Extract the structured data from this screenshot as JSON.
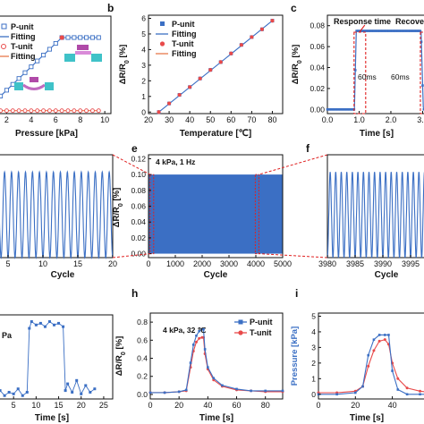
{
  "figure": {
    "panel_letters": [
      "b",
      "c",
      "e",
      "f",
      "h",
      "i"
    ]
  },
  "chart_data": [
    {
      "panel": "a",
      "type": "scatter",
      "xlabel": "Pressure [kPa]",
      "ylabel": "",
      "xlim": [
        0,
        10.5
      ],
      "ylim": [
        0,
        1.0
      ],
      "xticks": [
        "2",
        "4",
        "6",
        "8",
        "10"
      ],
      "legend_position": "top-left",
      "legend": [
        "P-unit",
        "Fitting",
        "T-unit",
        "Fitting"
      ],
      "series": [
        {
          "name": "P-unit",
          "color": "#3b6fc4",
          "x": [
            0,
            0.5,
            1,
            1.5,
            2,
            2.5,
            3,
            3.5,
            4,
            4.5,
            5,
            5.5,
            6,
            6.5,
            7,
            7.5,
            8,
            8.5,
            9,
            9.5
          ],
          "y": [
            0.0,
            0.06,
            0.12,
            0.18,
            0.24,
            0.3,
            0.36,
            0.42,
            0.48,
            0.54,
            0.6,
            0.66,
            0.72,
            0.78,
            0.78,
            0.78,
            0.78,
            0.78,
            0.78,
            0.78
          ]
        },
        {
          "name": "Fitting",
          "color": "#3b6fc4",
          "x": [
            0,
            6.5
          ],
          "y": [
            0.0,
            0.78
          ]
        },
        {
          "name": "T-unit",
          "color": "#e84a4a",
          "x": [
            0,
            0.5,
            1,
            1.5,
            2,
            2.5,
            3,
            3.5,
            4,
            4.5,
            5,
            5.5,
            6,
            6.5,
            7,
            7.5,
            8,
            8.5,
            9,
            9.5
          ],
          "y": [
            0.03,
            0.03,
            0.03,
            0.03,
            0.03,
            0.03,
            0.03,
            0.03,
            0.03,
            0.03,
            0.03,
            0.03,
            0.03,
            0.03,
            0.03,
            0.03,
            0.03,
            0.03,
            0.03,
            0.03
          ]
        },
        {
          "name": "Fitting",
          "color": "#e87a4a",
          "x": [
            0,
            9.5
          ],
          "y": [
            0.03,
            0.03
          ]
        }
      ]
    },
    {
      "panel": "b",
      "type": "scatter",
      "xlabel": "Temperature [℃]",
      "ylabel": "ΔR/R0 [%]",
      "xlim": [
        20,
        85
      ],
      "ylim": [
        -0.1,
        6.2
      ],
      "xticks": [
        20,
        30,
        40,
        50,
        60,
        70,
        80
      ],
      "yticks": [
        0,
        1,
        2,
        3,
        4,
        5,
        6
      ],
      "legend_position": "top-left",
      "legend": [
        "P-unit",
        "Fitting",
        "T-unit",
        "Fitting"
      ],
      "series": [
        {
          "name": "P-unit",
          "color": "#3b6fc4",
          "x": [
            25,
            30,
            35,
            40,
            45,
            50,
            55,
            60,
            65,
            70,
            75,
            80
          ],
          "y": [
            0.0,
            0.55,
            1.1,
            1.6,
            2.15,
            2.7,
            3.2,
            3.75,
            4.3,
            4.8,
            5.3,
            5.85
          ]
        },
        {
          "name": "Fitting",
          "color": "#3b6fc4",
          "x": [
            25,
            80
          ],
          "y": [
            0.0,
            5.85
          ]
        },
        {
          "name": "T-unit",
          "color": "#e84a4a",
          "x": [
            25,
            30,
            35,
            40,
            45,
            50,
            55,
            60,
            65,
            70,
            75,
            80
          ],
          "y": [
            0.0,
            0.55,
            1.1,
            1.6,
            2.15,
            2.7,
            3.2,
            3.75,
            4.3,
            4.8,
            5.3,
            5.85
          ]
        },
        {
          "name": "Fitting",
          "color": "#e87a4a",
          "x": [
            25,
            80
          ],
          "y": [
            0.0,
            5.85
          ]
        }
      ]
    },
    {
      "panel": "c",
      "type": "line",
      "xlabel": "Time [s]",
      "ylabel": "ΔR/R0 [%]",
      "xlim": [
        0,
        3.1
      ],
      "ylim": [
        -0.004,
        0.09
      ],
      "xticks": [
        0.0,
        1.0,
        2.0,
        3.0
      ],
      "yticks": [
        0.0,
        0.02,
        0.04,
        0.06,
        0.08
      ],
      "annotations": [
        "Response time",
        "Recovery",
        "60ms",
        "60ms"
      ],
      "series": [
        {
          "name": "",
          "color": "#3b6fc4",
          "x": [
            0,
            0.85,
            0.91,
            1.0,
            2.95,
            3.02,
            3.1
          ],
          "y": [
            0.0,
            0.0,
            0.075,
            0.075,
            0.075,
            0.002,
            0.0
          ]
        }
      ]
    },
    {
      "panel": "d",
      "type": "line",
      "xlabel": "Cycle",
      "xlim": [
        0,
        20
      ],
      "ylim": [
        0,
        0.12
      ],
      "xticks": [
        5,
        10,
        15,
        20
      ],
      "series": [
        {
          "name": "",
          "color": "#3b6fc4",
          "cycles": 20,
          "amplitude": 0.1
        }
      ]
    },
    {
      "panel": "e",
      "type": "area",
      "xlabel": "Cycle",
      "ylabel": "ΔR/R0 [%]",
      "xlim": [
        0,
        5000
      ],
      "ylim": [
        -0.005,
        0.125
      ],
      "xticks": [
        0,
        1000,
        2000,
        3000,
        4000,
        5000
      ],
      "yticks": [
        0.0,
        0.02,
        0.04,
        0.06,
        0.08,
        0.1,
        0.12
      ],
      "annotations": [
        "4 kPa, 1 Hz"
      ],
      "series": [
        {
          "name": "",
          "color": "#3b6fc4",
          "min": 0.0,
          "max": 0.1
        }
      ]
    },
    {
      "panel": "f",
      "type": "line",
      "xlabel": "Cycle",
      "xlim": [
        3980,
        4000
      ],
      "ylim": [
        0,
        0.12
      ],
      "xticks": [
        3980,
        3985,
        3990,
        3995
      ],
      "series": [
        {
          "name": "",
          "color": "#3b6fc4",
          "cycles": 20,
          "amplitude": 0.1
        }
      ]
    },
    {
      "panel": "g",
      "type": "scatter",
      "xlabel": "Time [s]",
      "xlim": [
        0,
        27
      ],
      "ylim": [
        0,
        5
      ],
      "xticks": [
        5,
        10,
        15,
        20,
        25
      ],
      "annotations": [
        "Pa"
      ],
      "series": [
        {
          "name": "",
          "color": "#3b6fc4",
          "x": [
            0,
            1,
            2,
            3,
            4,
            5,
            6,
            7,
            8,
            8.5,
            9,
            10,
            11,
            12,
            13,
            14,
            15,
            16,
            16.5,
            17,
            18,
            19,
            20,
            21,
            22,
            23
          ],
          "y": [
            0.6,
            0.3,
            0.5,
            0.2,
            0.4,
            0.3,
            0.6,
            0.2,
            0.4,
            4.2,
            4.6,
            4.4,
            4.5,
            4.3,
            4.6,
            4.4,
            4.5,
            4.3,
            0.5,
            0.9,
            0.4,
            1.1,
            0.3,
            0.8,
            0.4,
            0.6
          ]
        }
      ]
    },
    {
      "panel": "h",
      "type": "line",
      "xlabel": "Time [s]",
      "ylabel": "ΔR/R0 [%]",
      "xlim": [
        0,
        92
      ],
      "ylim": [
        -0.05,
        0.9
      ],
      "xticks": [
        0,
        20,
        40,
        60,
        80
      ],
      "yticks": [
        0.0,
        0.2,
        0.4,
        0.6,
        0.8
      ],
      "annotations": [
        "4 kPa, 32 ℃"
      ],
      "legend_position": "top-right",
      "legend": [
        "P-unit",
        "T-unit"
      ],
      "series": [
        {
          "name": "P-unit",
          "color": "#3b6fc4",
          "x": [
            0,
            10,
            20,
            25,
            28,
            30,
            32,
            34,
            36,
            37,
            38,
            40,
            44,
            50,
            60,
            70,
            80,
            92
          ],
          "y": [
            0.02,
            0.02,
            0.03,
            0.05,
            0.35,
            0.55,
            0.65,
            0.7,
            0.72,
            0.72,
            0.5,
            0.3,
            0.18,
            0.1,
            0.06,
            0.04,
            0.04,
            0.04
          ]
        },
        {
          "name": "T-unit",
          "color": "#e84a4a",
          "x": [
            0,
            10,
            20,
            25,
            28,
            30,
            32,
            34,
            36,
            37,
            38,
            40,
            44,
            50,
            60,
            70,
            80,
            92
          ],
          "y": [
            0.02,
            0.02,
            0.03,
            0.04,
            0.3,
            0.48,
            0.58,
            0.62,
            0.63,
            0.63,
            0.45,
            0.28,
            0.16,
            0.09,
            0.05,
            0.04,
            0.03,
            0.03
          ]
        }
      ]
    },
    {
      "panel": "i",
      "type": "line",
      "xlabel": "Time [s]",
      "ylabel": "Pressure [kPa]",
      "xlim": [
        0,
        62
      ],
      "ylim": [
        -0.3,
        5.2
      ],
      "xticks": [
        0,
        20,
        40,
        60
      ],
      "yticks": [
        0,
        1,
        2,
        3,
        4,
        5
      ],
      "series": [
        {
          "name": "",
          "color": "#3b6fc4",
          "x": [
            0,
            10,
            20,
            24,
            27,
            30,
            33,
            36,
            38,
            40,
            43,
            48,
            55,
            62
          ],
          "y": [
            0.0,
            0.0,
            0.1,
            0.5,
            2.5,
            3.5,
            3.8,
            3.8,
            3.8,
            1.5,
            0.3,
            0.0,
            0.0,
            0.0
          ]
        },
        {
          "name": "",
          "color": "#e84a4a",
          "x": [
            0,
            10,
            20,
            24,
            27,
            30,
            33,
            36,
            38,
            40,
            43,
            48,
            55,
            62
          ],
          "y": [
            0.1,
            0.1,
            0.2,
            0.5,
            1.8,
            2.8,
            3.4,
            3.5,
            3.2,
            2.0,
            1.0,
            0.4,
            0.2,
            0.1
          ]
        }
      ]
    }
  ]
}
